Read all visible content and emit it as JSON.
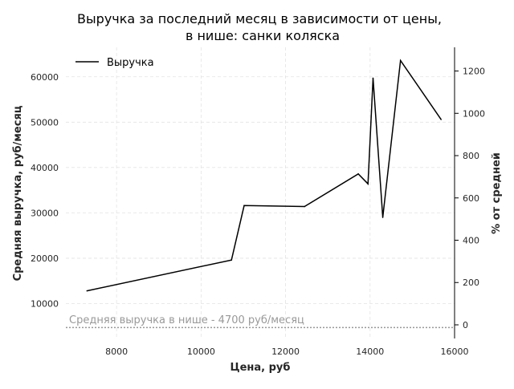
{
  "chart_data": {
    "type": "line",
    "title": "Выручка за последний месяц в зависимости от цены,\nв нише: санки коляска",
    "xlabel": "Цена, руб",
    "ylabel": "Средняя выручка, руб/месяц",
    "y2label": "% от средней",
    "xlim": [
      6800,
      16000
    ],
    "ylim": [
      2300,
      66500
    ],
    "y2lim": [
      -64.5,
      1312
    ],
    "xticks": [
      8000,
      10000,
      12000,
      14000,
      16000
    ],
    "yticks": [
      10000,
      20000,
      30000,
      40000,
      50000,
      60000
    ],
    "y2ticks": [
      0,
      200,
      400,
      600,
      800,
      1000,
      1200
    ],
    "grid": true,
    "legend_position": "top-left",
    "series": [
      {
        "name": "Выручка",
        "color": "#000000",
        "x": [
          7300,
          10720,
          11020,
          12450,
          13720,
          13950,
          14070,
          14300,
          14720,
          15680
        ],
        "y": [
          12800,
          19600,
          31600,
          31400,
          38600,
          36400,
          59700,
          29000,
          63600,
          50600
        ]
      }
    ],
    "reference_line": {
      "label": "Средняя выручка в нише - 4700 руб/месяц",
      "value": 4700,
      "color": "#999999"
    }
  }
}
